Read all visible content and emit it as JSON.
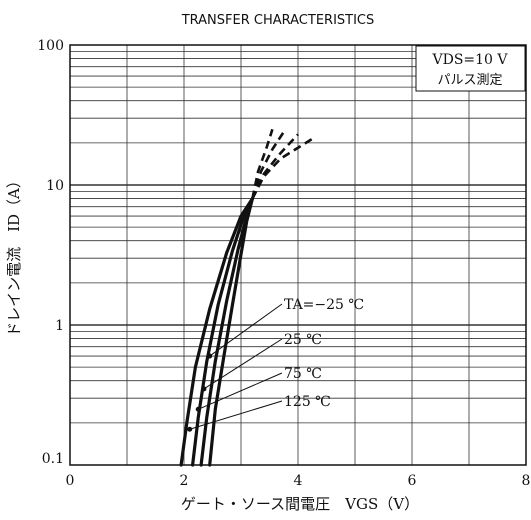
{
  "chart_data": {
    "type": "line",
    "title": "TRANSFER CHARACTERISTICS",
    "xlabel": "ゲート・ソース間電圧　VGS（V）",
    "ylabel": "ドレイン電流　ID（A）",
    "xlim": [
      0,
      8
    ],
    "ylim": [
      0.1,
      100
    ],
    "y_scale": "log",
    "x_ticks": [
      "0",
      "2",
      "4",
      "6",
      "8"
    ],
    "y_ticks": [
      "0.1",
      "1",
      "10",
      "100"
    ],
    "grid": true,
    "condition_box": [
      "VDS=10 V",
      "パルス測定"
    ],
    "series": [
      {
        "name": "TA=−25 ℃",
        "x": [
          2.45,
          2.55,
          2.7,
          2.85,
          3.0,
          3.1,
          3.2
        ],
        "y": [
          0.1,
          0.25,
          0.6,
          1.4,
          3.2,
          5.5,
          8.0
        ],
        "dashed_x": [
          3.2,
          3.4,
          3.7,
          4.3
        ],
        "dashed_y": [
          8.0,
          11.5,
          15.5,
          22.0
        ]
      },
      {
        "name": "25 ℃",
        "x": [
          2.3,
          2.4,
          2.55,
          2.75,
          2.95,
          3.1,
          3.2
        ],
        "y": [
          0.1,
          0.22,
          0.55,
          1.5,
          3.5,
          6.0,
          8.0
        ],
        "dashed_x": [
          3.2,
          3.4,
          3.7,
          4.0
        ],
        "dashed_y": [
          8.0,
          12.0,
          17.0,
          23.0
        ]
      },
      {
        "name": "75 ℃",
        "x": [
          2.15,
          2.25,
          2.4,
          2.6,
          2.85,
          3.05,
          3.2
        ],
        "y": [
          0.1,
          0.22,
          0.55,
          1.4,
          3.4,
          6.0,
          8.0
        ],
        "dashed_x": [
          3.2,
          3.35,
          3.55,
          3.75
        ],
        "dashed_y": [
          8.0,
          12.5,
          18.0,
          24.0
        ]
      },
      {
        "name": "125 ℃",
        "x": [
          1.95,
          2.05,
          2.2,
          2.45,
          2.75,
          3.0,
          3.2
        ],
        "y": [
          0.1,
          0.2,
          0.5,
          1.3,
          3.3,
          6.0,
          8.0
        ],
        "dashed_x": [
          3.2,
          3.3,
          3.45,
          3.55
        ],
        "dashed_y": [
          8.0,
          12.5,
          18.5,
          25.0
        ]
      }
    ],
    "annotations": [
      {
        "text": "TA=−25 ℃",
        "point": [
          2.45,
          0.6
        ]
      },
      {
        "text": "25 ℃",
        "point": [
          2.35,
          0.35
        ]
      },
      {
        "text": "75 ℃",
        "point": [
          2.25,
          0.25
        ]
      },
      {
        "text": "125 ℃",
        "point": [
          2.1,
          0.18
        ]
      }
    ],
    "colors": {
      "line": "#111111",
      "grid": "#333333",
      "background": "#ffffff"
    }
  }
}
